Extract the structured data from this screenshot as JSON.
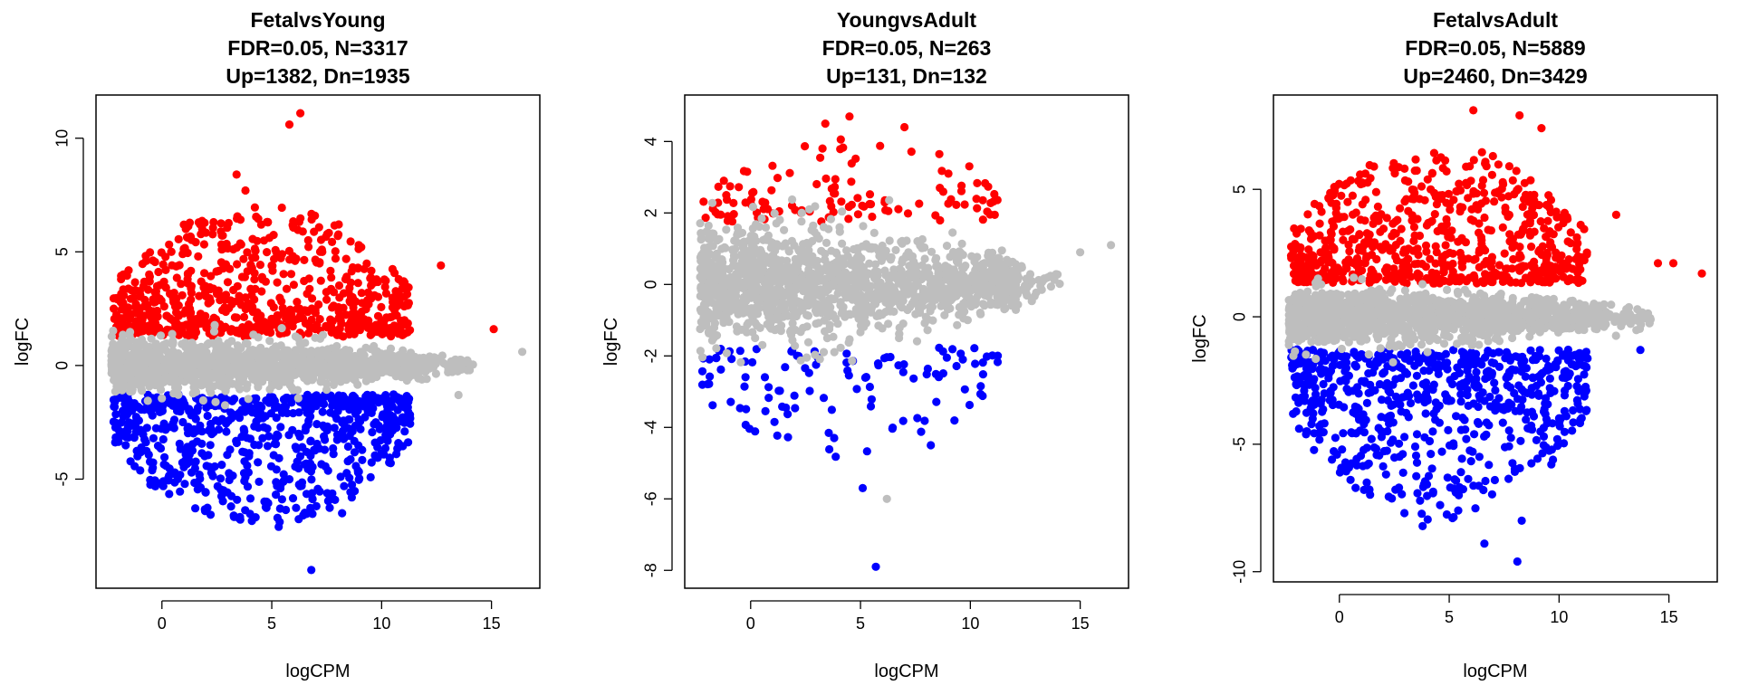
{
  "chart_data": [
    {
      "type": "scatter",
      "title_lines": [
        "FetalvsYoung",
        "FDR=0.05, N=3317",
        "Up=1382, Dn=1935"
      ],
      "xlabel": "logCPM",
      "ylabel": "logFC",
      "xlim": [
        -3,
        17.2
      ],
      "ylim": [
        -9.8,
        11.9
      ],
      "xticks": [
        0,
        5,
        10,
        15
      ],
      "yticks": [
        -5,
        0,
        5,
        10
      ],
      "grid": false,
      "legend": "none",
      "colors": {
        "up": "#ff0000",
        "down": "#0000ff",
        "ns": "#bebebe"
      },
      "cloud": {
        "up_max": 7.0,
        "dn_max": -7.0,
        "band": 1.2
      },
      "counts": {
        "up": 1382,
        "down": 1935
      },
      "extreme_points": [
        {
          "x": 6.3,
          "y": 11.1,
          "c": "up"
        },
        {
          "x": 5.8,
          "y": 10.6,
          "c": "up"
        },
        {
          "x": 3.4,
          "y": 8.4,
          "c": "up"
        },
        {
          "x": 3.8,
          "y": 7.7,
          "c": "up"
        },
        {
          "x": 12.7,
          "y": 4.4,
          "c": "up"
        },
        {
          "x": 15.1,
          "y": 1.6,
          "c": "up"
        },
        {
          "x": 16.4,
          "y": 0.6,
          "c": "ns"
        },
        {
          "x": 13.5,
          "y": -1.3,
          "c": "ns"
        },
        {
          "x": 6.8,
          "y": -9.0,
          "c": "down"
        },
        {
          "x": 8.2,
          "y": -6.5,
          "c": "down"
        }
      ]
    },
    {
      "type": "scatter",
      "title_lines": [
        "YoungvsAdult",
        "FDR=0.05, N=263",
        "Up=131, Dn=132"
      ],
      "xlabel": "logCPM",
      "ylabel": "logFC",
      "xlim": [
        -3,
        17.2
      ],
      "ylim": [
        -8.5,
        5.3
      ],
      "xticks": [
        0,
        5,
        10,
        15
      ],
      "yticks": [
        -8,
        -6,
        -4,
        -2,
        0,
        2,
        4
      ],
      "grid": false,
      "legend": "none",
      "colors": {
        "up": "#ff0000",
        "down": "#0000ff",
        "ns": "#bebebe"
      },
      "cloud": {
        "up_max": 4.0,
        "dn_max": -5.0,
        "band": 1.8
      },
      "counts": {
        "up": 131,
        "down": 132
      },
      "extreme_points": [
        {
          "x": 4.5,
          "y": 4.7,
          "c": "up"
        },
        {
          "x": 3.4,
          "y": 4.5,
          "c": "up"
        },
        {
          "x": 7.0,
          "y": 4.4,
          "c": "up"
        },
        {
          "x": 9.0,
          "y": 3.1,
          "c": "up"
        },
        {
          "x": 16.4,
          "y": 1.1,
          "c": "ns"
        },
        {
          "x": 15.0,
          "y": 0.9,
          "c": "ns"
        },
        {
          "x": 5.7,
          "y": -7.9,
          "c": "down"
        },
        {
          "x": 6.2,
          "y": -6.0,
          "c": "ns"
        },
        {
          "x": 5.1,
          "y": -5.7,
          "c": "down"
        },
        {
          "x": 8.2,
          "y": -4.5,
          "c": "down"
        }
      ]
    },
    {
      "type": "scatter",
      "title_lines": [
        "FetalvsAdult",
        "FDR=0.05, N=5889",
        "Up=2460, Dn=3429"
      ],
      "xlabel": "logCPM",
      "ylabel": "logFC",
      "xlim": [
        -3,
        17.2
      ],
      "ylim": [
        -10.4,
        8.7
      ],
      "xticks": [
        0,
        5,
        10,
        15
      ],
      "yticks": [
        -10,
        -5,
        0,
        5
      ],
      "grid": false,
      "legend": "none",
      "colors": {
        "up": "#ff0000",
        "down": "#0000ff",
        "ns": "#bebebe"
      },
      "cloud": {
        "up_max": 6.5,
        "dn_max": -8.0,
        "band": 1.2
      },
      "counts": {
        "up": 2460,
        "down": 3429
      },
      "extreme_points": [
        {
          "x": 6.1,
          "y": 8.1,
          "c": "up"
        },
        {
          "x": 8.2,
          "y": 7.9,
          "c": "up"
        },
        {
          "x": 9.2,
          "y": 7.4,
          "c": "up"
        },
        {
          "x": 12.6,
          "y": 4.0,
          "c": "up"
        },
        {
          "x": 14.5,
          "y": 2.1,
          "c": "up"
        },
        {
          "x": 15.2,
          "y": 2.1,
          "c": "up"
        },
        {
          "x": 16.5,
          "y": 1.7,
          "c": "up"
        },
        {
          "x": 13.7,
          "y": -1.3,
          "c": "down"
        },
        {
          "x": 8.1,
          "y": -9.6,
          "c": "down"
        },
        {
          "x": 6.6,
          "y": -8.9,
          "c": "down"
        },
        {
          "x": 8.3,
          "y": -8.0,
          "c": "down"
        }
      ]
    }
  ]
}
